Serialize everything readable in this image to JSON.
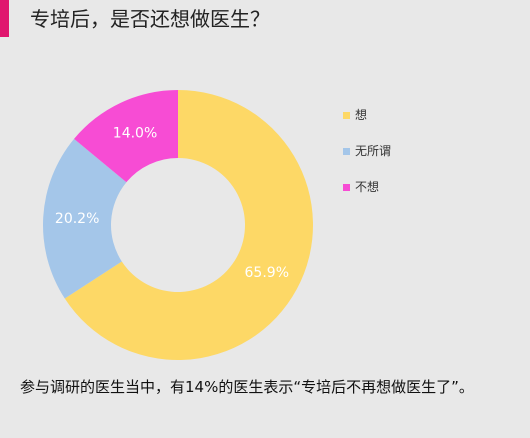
{
  "title": "专培后，是否还想做医生？",
  "caption": "参与调研的医生当中，有14%的医生表示“专培后不再想做医生了”。",
  "colors": {
    "accent": "#e0166e",
    "background": "#e8e8e8"
  },
  "chart_data": {
    "type": "pie",
    "donut": true,
    "legend_position": "right",
    "slices": [
      {
        "label": "想",
        "value": 65.9,
        "display": "65.9%",
        "color": "#fdd866"
      },
      {
        "label": "无所谓",
        "value": 20.2,
        "display": "20.2%",
        "color": "#a4c6e9"
      },
      {
        "label": "不想",
        "value": 14.0,
        "display": "14.0%",
        "color": "#f74cd4"
      }
    ]
  }
}
